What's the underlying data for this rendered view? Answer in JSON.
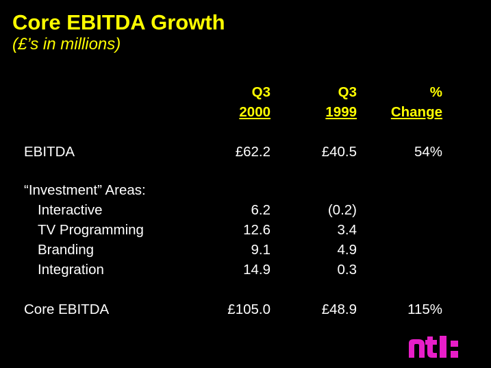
{
  "title": "Core EBITDA Growth",
  "subtitle": "(£’s in millions)",
  "headers": {
    "col1": {
      "line1": "Q3",
      "line2": "2000"
    },
    "col2": {
      "line1": "Q3",
      "line2": "1999"
    },
    "col3": {
      "line1": "%",
      "line2": "Change"
    }
  },
  "rows": {
    "ebitda": {
      "label": "EBITDA",
      "v2000": "£62.2",
      "v1999": "£40.5",
      "change": "54%"
    },
    "investment_heading": "“Investment” Areas:",
    "interactive": {
      "label": "Interactive",
      "v2000": "6.2",
      "v1999": "(0.2)"
    },
    "tv_programming": {
      "label": "TV Programming",
      "v2000": "12.6",
      "v1999": "3.4"
    },
    "branding": {
      "label": "Branding",
      "v2000": "9.1",
      "v1999": "4.9"
    },
    "integration": {
      "label": "Integration",
      "v2000": "14.9",
      "v1999": "0.3"
    },
    "core_ebitda": {
      "label": "Core EBITDA",
      "v2000": "£105.0",
      "v1999": "£48.9",
      "change": "115%"
    }
  },
  "logo": {
    "text": "ntl:",
    "color": "#e81ec8"
  },
  "colors": {
    "background": "#000000",
    "accent": "#ffff00",
    "text": "#ffffff"
  }
}
